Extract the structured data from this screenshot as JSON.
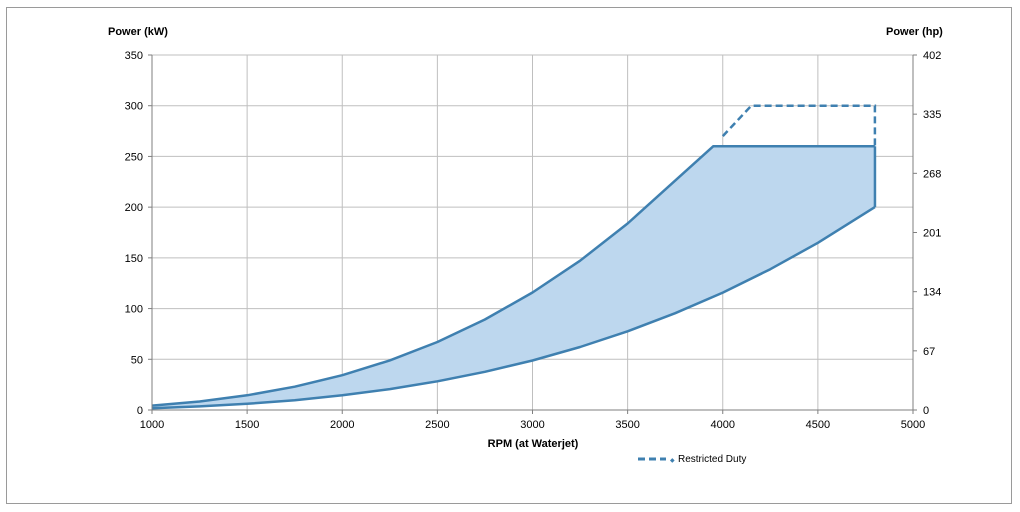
{
  "chart_data": {
    "type": "area",
    "title": "",
    "xlabel": "RPM (at Waterjet)",
    "ylabel_left": "Power (kW)",
    "ylabel_right": "Power (hp)",
    "xlim": [
      1000,
      5000
    ],
    "ylim": [
      0,
      350
    ],
    "y2lim": [
      0,
      402
    ],
    "x_ticks": [
      1000,
      1500,
      2000,
      2500,
      3000,
      3500,
      4000,
      4500,
      5000
    ],
    "y_ticks": [
      0,
      50,
      100,
      150,
      200,
      250,
      300,
      350
    ],
    "y2_ticks": [
      0,
      67,
      134,
      201,
      268,
      335,
      402
    ],
    "grid": true,
    "legend_position": "bottom-right",
    "series": [
      {
        "key": "upper",
        "style": "solid",
        "x": [
          1000,
          1250,
          1500,
          1750,
          2000,
          2250,
          2500,
          2750,
          3000,
          3250,
          3500,
          3750,
          3950,
          4800
        ],
        "y": [
          4.3,
          8.4,
          14.5,
          23.0,
          34.3,
          48.9,
          67.0,
          89.2,
          115.8,
          147.2,
          183.9,
          226.2,
          260,
          260
        ]
      },
      {
        "key": "lower",
        "style": "solid",
        "x": [
          1000,
          1250,
          1500,
          1750,
          2000,
          2250,
          2500,
          2750,
          3000,
          3250,
          3500,
          3750,
          4000,
          4250,
          4500,
          4800
        ],
        "y": [
          1.8,
          3.5,
          6.1,
          9.7,
          14.5,
          20.6,
          28.3,
          37.7,
          48.8,
          62.1,
          77.6,
          95.4,
          115.7,
          138.8,
          164.8,
          200
        ]
      },
      {
        "key": "restricted",
        "name": "Restricted Duty",
        "style": "dashed",
        "x": [
          4000,
          4150,
          4800,
          4800
        ],
        "y": [
          270,
          300,
          300,
          260
        ]
      }
    ]
  },
  "colors": {
    "line": "#3f80b0",
    "fill": "#bdd7ee",
    "grid": "#bfbfbf",
    "axis": "#7f7f7f"
  }
}
